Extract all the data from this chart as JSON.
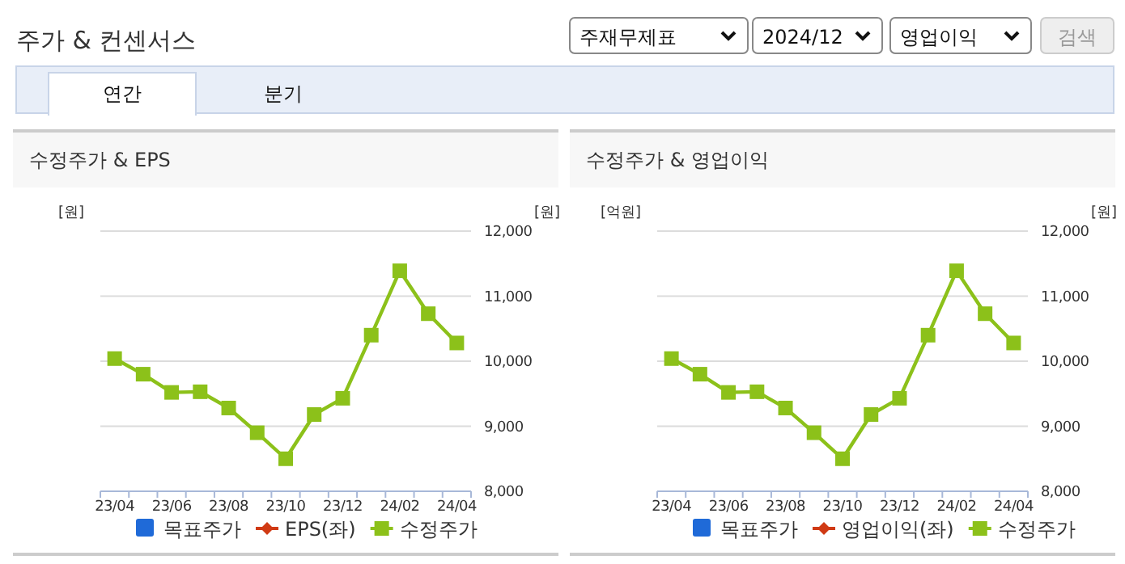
{
  "chart_data": [
    {
      "type": "other",
      "title": "주가 & 컨센서스",
      "annotations": [
        "주재무제표",
        "2024/12",
        "영업이익",
        "검색",
        "연간",
        "분기"
      ]
    },
    {
      "type": "line",
      "title": "수정주가 & EPS",
      "ylabel": "[원]",
      "y2label": "[원]",
      "categories": [
        "23/04",
        null,
        "23/06",
        null,
        "23/08",
        null,
        "23/10",
        null,
        "23/12",
        null,
        "24/02",
        null,
        "24/04"
      ],
      "y2lim": [
        8000,
        12000
      ],
      "y2ticks": [
        {
          "value": 8000,
          "label": "8,000"
        },
        {
          "value": 9000,
          "label": "9,000"
        },
        {
          "value": 10000,
          "label": "10,000"
        },
        {
          "value": 11000,
          "label": "11,000"
        },
        {
          "value": 12000,
          "label": "12,000"
        }
      ],
      "grid": "y",
      "legend": "bottom",
      "series": [
        {
          "name": "목표주가",
          "type": "bar",
          "color": "#1f6ad8",
          "values": [
            null,
            null,
            null,
            null,
            null,
            null,
            null,
            null,
            null,
            null,
            null,
            null,
            null
          ]
        },
        {
          "name": "EPS(좌)",
          "type": "line",
          "marker": "diamond",
          "color": "#d03a14",
          "values": [
            null,
            null,
            null,
            null,
            null,
            null,
            null,
            null,
            null,
            null,
            null,
            null,
            null
          ]
        },
        {
          "name": "수정주가",
          "type": "line",
          "marker": "square",
          "axis": "y2",
          "color": "#8cc11a",
          "values": [
            10040,
            9800,
            9520,
            9530,
            9280,
            8900,
            8500,
            9180,
            9430,
            10400,
            11390,
            10730,
            10280
          ]
        }
      ]
    },
    {
      "type": "line",
      "title": "수정주가 & 영업이익",
      "ylabel": "[억원]",
      "y2label": "[원]",
      "categories": [
        "23/04",
        null,
        "23/06",
        null,
        "23/08",
        null,
        "23/10",
        null,
        "23/12",
        null,
        "24/02",
        null,
        "24/04"
      ],
      "y2lim": [
        8000,
        12000
      ],
      "y2ticks": [
        {
          "value": 8000,
          "label": "8,000"
        },
        {
          "value": 9000,
          "label": "9,000"
        },
        {
          "value": 10000,
          "label": "10,000"
        },
        {
          "value": 11000,
          "label": "11,000"
        },
        {
          "value": 12000,
          "label": "12,000"
        }
      ],
      "grid": "y",
      "legend": "bottom",
      "series": [
        {
          "name": "목표주가",
          "type": "bar",
          "color": "#1f6ad8",
          "values": [
            null,
            null,
            null,
            null,
            null,
            null,
            null,
            null,
            null,
            null,
            null,
            null,
            null
          ]
        },
        {
          "name": "영업이익(좌)",
          "type": "line",
          "marker": "diamond",
          "color": "#d03a14",
          "values": [
            null,
            null,
            null,
            null,
            null,
            null,
            null,
            null,
            null,
            null,
            null,
            null,
            null
          ]
        },
        {
          "name": "수정주가",
          "type": "line",
          "marker": "square",
          "axis": "y2",
          "color": "#8cc11a",
          "values": [
            10040,
            9800,
            9520,
            9530,
            9280,
            8900,
            8500,
            9180,
            9430,
            10400,
            11390,
            10730,
            10280
          ]
        }
      ]
    }
  ]
}
